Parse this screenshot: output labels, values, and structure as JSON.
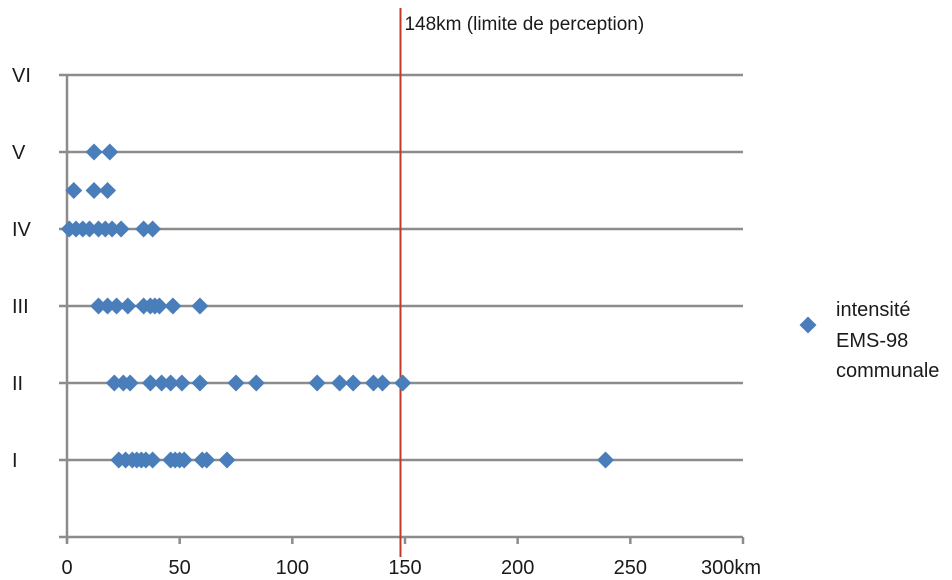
{
  "chart_data": {
    "type": "scatter",
    "title": "",
    "xlabel": "",
    "ylabel": "",
    "xlim": [
      0,
      300
    ],
    "x_ticks": [
      "0",
      "50",
      "100",
      "150",
      "200",
      "250",
      "300km"
    ],
    "y_categories": [
      "I",
      "II",
      "III",
      "IV",
      "V",
      "VI"
    ],
    "legend": {
      "position": "right",
      "lines": [
        "intensité",
        "EMS-98",
        "communale"
      ]
    },
    "colors": {
      "marker": "#4a7ebb",
      "gridline": "#8c8c8c",
      "axis": "#8c8c8c",
      "reference_line": "#c0392b"
    },
    "reference_line": {
      "x": 148,
      "label": "148km (limite de perception)"
    },
    "series": [
      {
        "points": [
          {
            "x": 23,
            "y": 1
          },
          {
            "x": 26,
            "y": 1
          },
          {
            "x": 29,
            "y": 1
          },
          {
            "x": 31,
            "y": 1
          },
          {
            "x": 33,
            "y": 1
          },
          {
            "x": 35,
            "y": 1
          },
          {
            "x": 38,
            "y": 1
          },
          {
            "x": 46,
            "y": 1
          },
          {
            "x": 48,
            "y": 1
          },
          {
            "x": 50,
            "y": 1
          },
          {
            "x": 52,
            "y": 1
          },
          {
            "x": 60,
            "y": 1
          },
          {
            "x": 62,
            "y": 1
          },
          {
            "x": 71,
            "y": 1
          },
          {
            "x": 239,
            "y": 1
          },
          {
            "x": 21,
            "y": 2
          },
          {
            "x": 25,
            "y": 2
          },
          {
            "x": 28,
            "y": 2
          },
          {
            "x": 37,
            "y": 2
          },
          {
            "x": 42,
            "y": 2
          },
          {
            "x": 46,
            "y": 2
          },
          {
            "x": 51,
            "y": 2
          },
          {
            "x": 59,
            "y": 2
          },
          {
            "x": 75,
            "y": 2
          },
          {
            "x": 84,
            "y": 2
          },
          {
            "x": 111,
            "y": 2
          },
          {
            "x": 121,
            "y": 2
          },
          {
            "x": 127,
            "y": 2
          },
          {
            "x": 136,
            "y": 2
          },
          {
            "x": 140,
            "y": 2
          },
          {
            "x": 149,
            "y": 2
          },
          {
            "x": 14,
            "y": 3
          },
          {
            "x": 18,
            "y": 3
          },
          {
            "x": 22,
            "y": 3
          },
          {
            "x": 27,
            "y": 3
          },
          {
            "x": 34,
            "y": 3
          },
          {
            "x": 37,
            "y": 3
          },
          {
            "x": 39,
            "y": 3
          },
          {
            "x": 41,
            "y": 3
          },
          {
            "x": 47,
            "y": 3
          },
          {
            "x": 59,
            "y": 3
          },
          {
            "x": 1,
            "y": 4
          },
          {
            "x": 4,
            "y": 4
          },
          {
            "x": 7,
            "y": 4
          },
          {
            "x": 10,
            "y": 4
          },
          {
            "x": 14,
            "y": 4
          },
          {
            "x": 17,
            "y": 4
          },
          {
            "x": 20,
            "y": 4
          },
          {
            "x": 24,
            "y": 4
          },
          {
            "x": 34,
            "y": 4
          },
          {
            "x": 38,
            "y": 4
          },
          {
            "x": 3,
            "y": 4.5
          },
          {
            "x": 12,
            "y": 4.5
          },
          {
            "x": 18,
            "y": 4.5
          },
          {
            "x": 12,
            "y": 5
          },
          {
            "x": 19,
            "y": 5
          }
        ]
      }
    ]
  }
}
